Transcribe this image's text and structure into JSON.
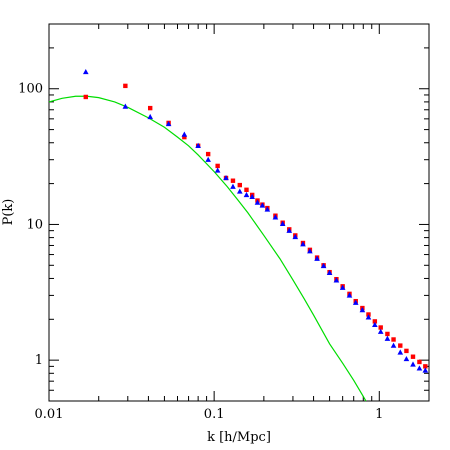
{
  "chart_data": {
    "type": "scatter",
    "title": "",
    "xlabel": "k [h/Mpc]",
    "ylabel": "P(k)",
    "xscale": "log",
    "yscale": "log",
    "xlim": [
      0.01,
      2
    ],
    "ylim": [
      0.5,
      300
    ],
    "grid": false,
    "legend": "none",
    "x_ticks": [
      {
        "value": 0.01,
        "label": "0.01"
      },
      {
        "value": 0.1,
        "label": "0.1"
      },
      {
        "value": 1,
        "label": "1"
      }
    ],
    "y_ticks": [
      {
        "value": 1,
        "label": "1"
      },
      {
        "value": 10,
        "label": "10"
      },
      {
        "value": 100,
        "label": "100"
      }
    ],
    "series": [
      {
        "marker": "square",
        "color": "#ff0000",
        "points": [
          [
            0.0167,
            87
          ],
          [
            0.029,
            105
          ],
          [
            0.041,
            72
          ],
          [
            0.053,
            56
          ],
          [
            0.066,
            44
          ],
          [
            0.08,
            38
          ],
          [
            0.092,
            33
          ],
          [
            0.105,
            27
          ],
          [
            0.118,
            22
          ],
          [
            0.13,
            21
          ],
          [
            0.143,
            19.5
          ],
          [
            0.157,
            18
          ],
          [
            0.17,
            16.5
          ],
          [
            0.183,
            15
          ],
          [
            0.196,
            14
          ],
          [
            0.21,
            13.2
          ],
          [
            0.235,
            11.6
          ],
          [
            0.26,
            10.3
          ],
          [
            0.285,
            9.2
          ],
          [
            0.31,
            8.3
          ],
          [
            0.345,
            7.3
          ],
          [
            0.38,
            6.5
          ],
          [
            0.42,
            5.7
          ],
          [
            0.46,
            5.0
          ],
          [
            0.5,
            4.45
          ],
          [
            0.55,
            3.95
          ],
          [
            0.6,
            3.5
          ],
          [
            0.66,
            3.08
          ],
          [
            0.72,
            2.72
          ],
          [
            0.79,
            2.42
          ],
          [
            0.86,
            2.17
          ],
          [
            0.94,
            1.93
          ],
          [
            1.02,
            1.74
          ],
          [
            1.12,
            1.56
          ],
          [
            1.22,
            1.42
          ],
          [
            1.34,
            1.28
          ],
          [
            1.46,
            1.17
          ],
          [
            1.6,
            1.06
          ],
          [
            1.75,
            0.97
          ],
          [
            1.9,
            0.9
          ]
        ]
      },
      {
        "marker": "triangle",
        "color": "#0000ff",
        "points": [
          [
            0.0167,
            133
          ],
          [
            0.029,
            74
          ],
          [
            0.041,
            62
          ],
          [
            0.053,
            55
          ],
          [
            0.066,
            46
          ],
          [
            0.08,
            38
          ],
          [
            0.092,
            30
          ],
          [
            0.105,
            25
          ],
          [
            0.118,
            22
          ],
          [
            0.13,
            19
          ],
          [
            0.143,
            17.5
          ],
          [
            0.157,
            16.5
          ],
          [
            0.17,
            16
          ],
          [
            0.183,
            14.5
          ],
          [
            0.196,
            13.8
          ],
          [
            0.21,
            12.9
          ],
          [
            0.235,
            11.3
          ],
          [
            0.26,
            10.1
          ],
          [
            0.285,
            9.0
          ],
          [
            0.31,
            8.1
          ],
          [
            0.345,
            7.15
          ],
          [
            0.38,
            6.35
          ],
          [
            0.42,
            5.6
          ],
          [
            0.46,
            4.95
          ],
          [
            0.5,
            4.4
          ],
          [
            0.55,
            3.88
          ],
          [
            0.6,
            3.42
          ],
          [
            0.66,
            3.0
          ],
          [
            0.72,
            2.65
          ],
          [
            0.79,
            2.34
          ],
          [
            0.86,
            2.07
          ],
          [
            0.94,
            1.82
          ],
          [
            1.02,
            1.62
          ],
          [
            1.12,
            1.44
          ],
          [
            1.22,
            1.28
          ],
          [
            1.34,
            1.14
          ],
          [
            1.46,
            1.02
          ],
          [
            1.6,
            0.93
          ],
          [
            1.75,
            0.87
          ],
          [
            1.9,
            0.84
          ]
        ]
      },
      {
        "type": "line",
        "color": "#00dd00",
        "points": [
          [
            0.01,
            80
          ],
          [
            0.012,
            85
          ],
          [
            0.0145,
            88
          ],
          [
            0.017,
            88
          ],
          [
            0.02,
            86
          ],
          [
            0.025,
            80
          ],
          [
            0.03,
            73
          ],
          [
            0.04,
            61
          ],
          [
            0.05,
            52
          ],
          [
            0.06,
            44
          ],
          [
            0.07,
            38
          ],
          [
            0.08,
            32.5
          ],
          [
            0.09,
            28
          ],
          [
            0.1,
            24.5
          ],
          [
            0.12,
            19
          ],
          [
            0.14,
            15
          ],
          [
            0.16,
            12.2
          ],
          [
            0.2,
            8.3
          ],
          [
            0.25,
            5.6
          ],
          [
            0.3,
            3.9
          ],
          [
            0.35,
            2.85
          ],
          [
            0.4,
            2.15
          ],
          [
            0.5,
            1.32
          ],
          [
            0.6,
            0.95
          ],
          [
            0.7,
            0.71
          ],
          [
            0.8,
            0.54
          ],
          [
            0.83,
            0.5
          ]
        ]
      }
    ]
  }
}
